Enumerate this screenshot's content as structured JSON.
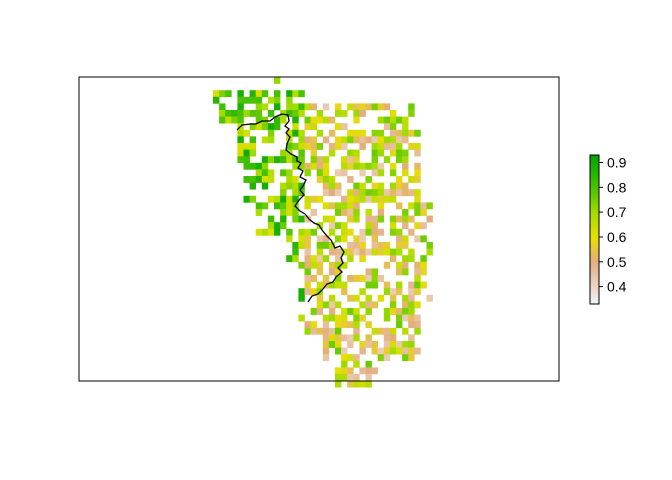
{
  "chart_data": {
    "type": "heatmap",
    "title": "",
    "xlabel": "",
    "ylabel": "",
    "legend": {
      "placement": "right",
      "range": [
        0.33,
        0.93
      ],
      "ticks": [
        "0.4",
        "0.5",
        "0.6",
        "0.7",
        "0.8",
        "0.9"
      ],
      "tick_values": [
        0.4,
        0.5,
        0.6,
        0.7,
        0.8,
        0.9
      ],
      "colors": [
        "#f2f2f2",
        "#e4ad80",
        "#e6e000",
        "#a2dc00",
        "#4cc300",
        "#00a600"
      ]
    },
    "grid": {
      "nrows": 41,
      "ncols": 36,
      "data_col_offset": 0,
      "description_of_rows": "raster cell values read top to bottom; null means no data",
      "values": []
    },
    "boundary_line_color": "#000000",
    "colors": {
      "panel_border": "#000000",
      "background": "#ffffff"
    }
  }
}
